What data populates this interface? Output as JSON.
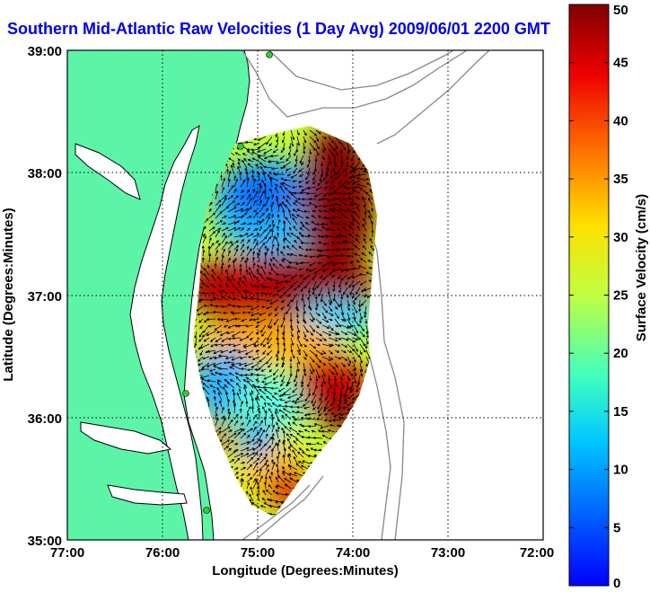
{
  "chart_data": {
    "type": "heatmap",
    "title": "Southern Mid-Atlantic Raw Velocities (1 Day Avg) 2009/06/01 2200 GMT",
    "xlabel": "Longitude (Degrees:Minutes)",
    "ylabel": "Latitude (Degrees:Minutes)",
    "colorbar_label": "Surface Velocity (cm/s)",
    "x_ticks": [
      "77:00",
      "76:00",
      "75:00",
      "74:00",
      "73:00",
      "72:00"
    ],
    "y_ticks": [
      "39:00",
      "38:00",
      "37:00",
      "36:00",
      "35:00"
    ],
    "colorbar_ticks": [
      "50",
      "45",
      "40",
      "35",
      "30",
      "25",
      "20",
      "15",
      "10",
      "5",
      "0"
    ],
    "xlim": [
      -77,
      -72
    ],
    "ylim": [
      35,
      39
    ],
    "clim": [
      0,
      50
    ],
    "grid": true,
    "colormap": "jet",
    "colors": {
      "land": "#5cf5a8",
      "land_border": "#000000",
      "bathymetry": "#888888",
      "title": "#0000ee",
      "stations": "#33cc33"
    },
    "velocity_field_regions": [
      {
        "region": "north lobe west",
        "lon": -75.0,
        "lat": 37.8,
        "speed": 8
      },
      {
        "region": "north lobe east",
        "lon": -74.1,
        "lat": 37.7,
        "speed": 45
      },
      {
        "region": "central band",
        "lon": -74.9,
        "lat": 37.0,
        "speed": 48
      },
      {
        "region": "mid east",
        "lon": -74.1,
        "lat": 36.7,
        "speed": 12
      },
      {
        "region": "mid west",
        "lon": -75.1,
        "lat": 36.5,
        "speed": 20
      },
      {
        "region": "south west",
        "lon": -75.3,
        "lat": 36.0,
        "speed": 10
      },
      {
        "region": "south east",
        "lon": -74.3,
        "lat": 36.1,
        "speed": 44
      },
      {
        "region": "southern tip",
        "lon": -74.9,
        "lat": 35.4,
        "speed": 38
      }
    ]
  }
}
